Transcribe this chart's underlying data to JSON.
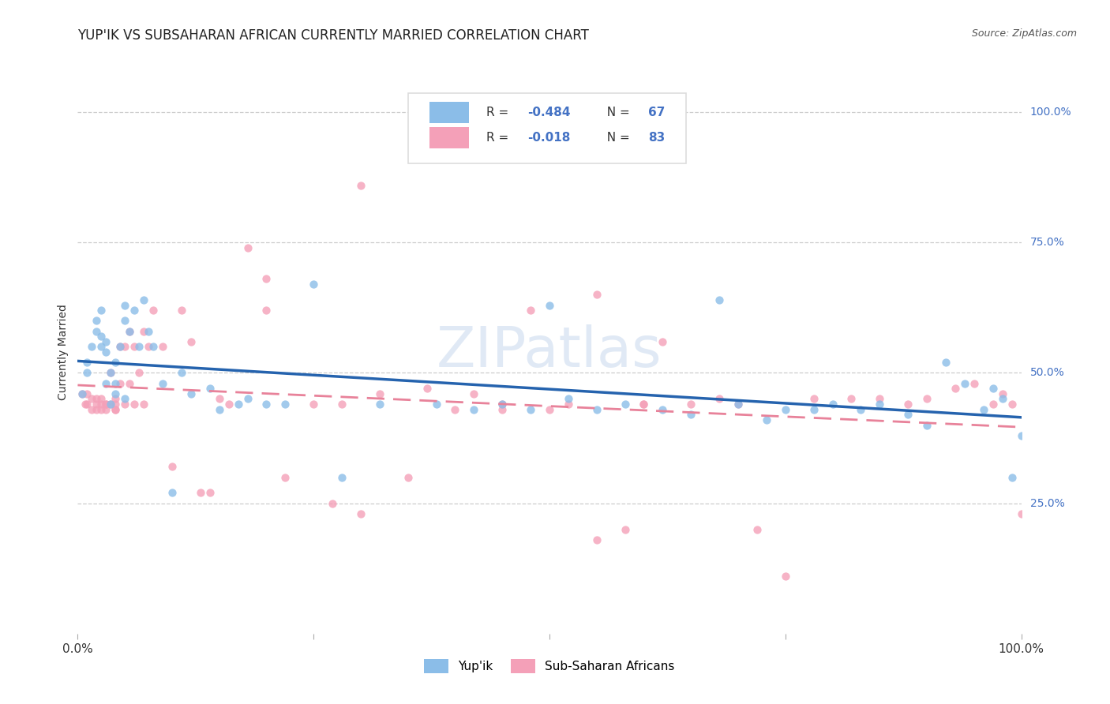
{
  "title": "YUP'IK VS SUBSAHARAN AFRICAN CURRENTLY MARRIED CORRELATION CHART",
  "source": "Source: ZipAtlas.com",
  "ylabel": "Currently Married",
  "ytick_labels": [
    "100.0%",
    "75.0%",
    "50.0%",
    "25.0%"
  ],
  "ytick_values": [
    1.0,
    0.75,
    0.5,
    0.25
  ],
  "R_yupik": -0.484,
  "N_yupik": 67,
  "R_subsaharan": -0.018,
  "N_subsaharan": 83,
  "color_yupik": "#8bbde8",
  "color_subsaharan": "#f4a0b8",
  "color_yupik_line": "#2563ae",
  "color_subsaharan_line": "#e8829a",
  "background_color": "#ffffff",
  "title_fontsize": 12,
  "source_fontsize": 9,
  "ylabel_fontsize": 10,
  "dot_size": 55,
  "dot_alpha": 0.8,
  "yupik_x": [
    0.005,
    0.01,
    0.01,
    0.015,
    0.02,
    0.02,
    0.025,
    0.025,
    0.025,
    0.03,
    0.03,
    0.03,
    0.035,
    0.035,
    0.04,
    0.04,
    0.04,
    0.045,
    0.05,
    0.05,
    0.05,
    0.055,
    0.06,
    0.065,
    0.07,
    0.075,
    0.08,
    0.09,
    0.1,
    0.11,
    0.12,
    0.14,
    0.15,
    0.17,
    0.18,
    0.2,
    0.22,
    0.25,
    0.28,
    0.32,
    0.38,
    0.42,
    0.45,
    0.48,
    0.5,
    0.52,
    0.55,
    0.58,
    0.62,
    0.65,
    0.68,
    0.7,
    0.73,
    0.75,
    0.78,
    0.8,
    0.83,
    0.85,
    0.88,
    0.9,
    0.92,
    0.94,
    0.96,
    0.97,
    0.98,
    0.99,
    1.0
  ],
  "yupik_y": [
    0.46,
    0.52,
    0.5,
    0.55,
    0.58,
    0.6,
    0.55,
    0.57,
    0.62,
    0.54,
    0.56,
    0.48,
    0.5,
    0.44,
    0.52,
    0.48,
    0.46,
    0.55,
    0.63,
    0.6,
    0.45,
    0.58,
    0.62,
    0.55,
    0.64,
    0.58,
    0.55,
    0.48,
    0.27,
    0.5,
    0.46,
    0.47,
    0.43,
    0.44,
    0.45,
    0.44,
    0.44,
    0.67,
    0.3,
    0.44,
    0.44,
    0.43,
    0.44,
    0.43,
    0.63,
    0.45,
    0.43,
    0.44,
    0.43,
    0.42,
    0.64,
    0.44,
    0.41,
    0.43,
    0.43,
    0.44,
    0.43,
    0.44,
    0.42,
    0.4,
    0.52,
    0.48,
    0.43,
    0.47,
    0.45,
    0.3,
    0.38
  ],
  "subsaharan_x": [
    0.005,
    0.008,
    0.01,
    0.01,
    0.015,
    0.015,
    0.02,
    0.02,
    0.02,
    0.025,
    0.025,
    0.025,
    0.03,
    0.03,
    0.03,
    0.035,
    0.035,
    0.04,
    0.04,
    0.04,
    0.04,
    0.045,
    0.045,
    0.05,
    0.05,
    0.055,
    0.055,
    0.06,
    0.06,
    0.065,
    0.07,
    0.07,
    0.075,
    0.08,
    0.09,
    0.1,
    0.11,
    0.12,
    0.13,
    0.14,
    0.15,
    0.16,
    0.18,
    0.2,
    0.22,
    0.25,
    0.27,
    0.28,
    0.3,
    0.32,
    0.35,
    0.37,
    0.4,
    0.42,
    0.45,
    0.48,
    0.5,
    0.52,
    0.55,
    0.58,
    0.6,
    0.62,
    0.65,
    0.68,
    0.7,
    0.72,
    0.75,
    0.78,
    0.82,
    0.85,
    0.88,
    0.9,
    0.93,
    0.95,
    0.97,
    0.98,
    0.99,
    1.0,
    0.2,
    0.3,
    0.45,
    0.55,
    0.6
  ],
  "subsaharan_y": [
    0.46,
    0.44,
    0.44,
    0.46,
    0.45,
    0.43,
    0.44,
    0.45,
    0.43,
    0.44,
    0.45,
    0.43,
    0.44,
    0.43,
    0.44,
    0.5,
    0.44,
    0.43,
    0.44,
    0.45,
    0.43,
    0.55,
    0.48,
    0.55,
    0.44,
    0.58,
    0.48,
    0.55,
    0.44,
    0.5,
    0.58,
    0.44,
    0.55,
    0.62,
    0.55,
    0.32,
    0.62,
    0.56,
    0.27,
    0.27,
    0.45,
    0.44,
    0.74,
    0.62,
    0.3,
    0.44,
    0.25,
    0.44,
    0.23,
    0.46,
    0.3,
    0.47,
    0.43,
    0.46,
    0.43,
    0.62,
    0.43,
    0.44,
    0.18,
    0.2,
    0.44,
    0.56,
    0.44,
    0.45,
    0.44,
    0.2,
    0.11,
    0.45,
    0.45,
    0.45,
    0.44,
    0.45,
    0.47,
    0.48,
    0.44,
    0.46,
    0.44,
    0.23,
    0.68,
    0.86,
    0.44,
    0.65,
    0.44
  ]
}
